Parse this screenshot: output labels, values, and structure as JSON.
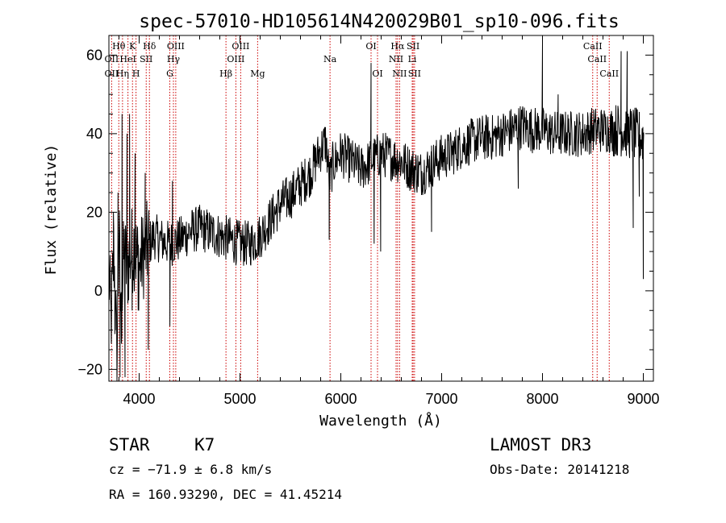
{
  "chart_data": {
    "type": "line",
    "title": "spec-57010-HD105614N420029B01_sp10-096.fits",
    "xlabel": "Wavelength (Å)",
    "ylabel": "Flux (relative)",
    "xlim": [
      3700,
      9100
    ],
    "ylim": [
      -23,
      65
    ],
    "xticks": [
      4000,
      5000,
      6000,
      7000,
      8000,
      9000
    ],
    "yticks": [
      -20,
      0,
      20,
      40,
      60
    ],
    "grid": false,
    "series": [
      {
        "name": "flux",
        "anchors": [
          [
            3700,
            5
          ],
          [
            3720,
            -8
          ],
          [
            3750,
            10
          ],
          [
            3780,
            -18
          ],
          [
            3800,
            15
          ],
          [
            3820,
            -8
          ],
          [
            3850,
            10
          ],
          [
            3880,
            5
          ],
          [
            3900,
            8
          ],
          [
            3950,
            12
          ],
          [
            4000,
            6
          ],
          [
            4050,
            10
          ],
          [
            4100,
            12
          ],
          [
            4150,
            14
          ],
          [
            4200,
            13
          ],
          [
            4300,
            12
          ],
          [
            4400,
            13
          ],
          [
            4500,
            15
          ],
          [
            4600,
            16
          ],
          [
            4700,
            15
          ],
          [
            4800,
            14
          ],
          [
            4900,
            13
          ],
          [
            5000,
            12
          ],
          [
            5100,
            12
          ],
          [
            5200,
            14
          ],
          [
            5300,
            18
          ],
          [
            5400,
            22
          ],
          [
            5500,
            24
          ],
          [
            5600,
            27
          ],
          [
            5700,
            30
          ],
          [
            5750,
            33
          ],
          [
            5800,
            36
          ],
          [
            5850,
            38
          ],
          [
            5890,
            28
          ],
          [
            5920,
            32
          ],
          [
            6000,
            35
          ],
          [
            6100,
            33
          ],
          [
            6200,
            31
          ],
          [
            6300,
            33
          ],
          [
            6400,
            35
          ],
          [
            6500,
            34
          ],
          [
            6600,
            33
          ],
          [
            6700,
            31
          ],
          [
            6800,
            30
          ],
          [
            6900,
            32
          ],
          [
            7000,
            34
          ],
          [
            7100,
            35
          ],
          [
            7200,
            37
          ],
          [
            7300,
            38
          ],
          [
            7400,
            39
          ],
          [
            7500,
            39
          ],
          [
            7600,
            40
          ],
          [
            7700,
            41
          ],
          [
            7800,
            42
          ],
          [
            7900,
            41
          ],
          [
            8000,
            41
          ],
          [
            8100,
            40
          ],
          [
            8200,
            40
          ],
          [
            8300,
            40
          ],
          [
            8400,
            40
          ],
          [
            8500,
            41
          ],
          [
            8600,
            41
          ],
          [
            8700,
            41
          ],
          [
            8800,
            41
          ],
          [
            8900,
            40
          ],
          [
            8980,
            39
          ]
        ],
        "spikes": [
          [
            3725,
            -13
          ],
          [
            3745,
            20
          ],
          [
            3760,
            -11
          ],
          [
            3790,
            25
          ],
          [
            3810,
            -22
          ],
          [
            3830,
            45
          ],
          [
            3860,
            -22
          ],
          [
            3880,
            40
          ],
          [
            3905,
            45
          ],
          [
            3930,
            -5
          ],
          [
            3960,
            35
          ],
          [
            3990,
            -5
          ],
          [
            4060,
            30
          ],
          [
            4090,
            -15
          ],
          [
            4305,
            -9
          ],
          [
            4330,
            28
          ],
          [
            5885,
            13
          ],
          [
            6300,
            58
          ],
          [
            6330,
            12
          ],
          [
            6395,
            10
          ],
          [
            8000,
            63
          ],
          [
            8155,
            50
          ],
          [
            8780,
            61
          ],
          [
            8840,
            61
          ],
          [
            8900,
            16
          ],
          [
            8960,
            24
          ],
          [
            9000,
            3
          ],
          [
            7760,
            26
          ],
          [
            6900,
            15
          ]
        ],
        "noise_amplitude": 6
      }
    ],
    "annotations": [
      {
        "label": "Hθ",
        "x": 3798,
        "row": 1
      },
      {
        "label": "K",
        "x": 3934,
        "row": 1
      },
      {
        "label": "Hδ",
        "x": 4102,
        "row": 1
      },
      {
        "label": "OIII",
        "x": 4363,
        "row": 1
      },
      {
        "label": "OIII",
        "x": 5007,
        "row": 1
      },
      {
        "label": "OI",
        "x": 6300,
        "row": 1
      },
      {
        "label": "Hα",
        "x": 6563,
        "row": 1
      },
      {
        "label": "SII",
        "x": 6717,
        "row": 1
      },
      {
        "label": "CaII",
        "x": 8498,
        "row": 1
      },
      {
        "label": "OII",
        "x": 3727,
        "row": 2
      },
      {
        "label": "HeI",
        "x": 3889,
        "row": 2
      },
      {
        "label": "SII",
        "x": 4070,
        "row": 2
      },
      {
        "label": "Hγ",
        "x": 4340,
        "row": 2
      },
      {
        "label": "OIII",
        "x": 4959,
        "row": 2
      },
      {
        "label": "Na",
        "x": 5893,
        "row": 2
      },
      {
        "label": "NII",
        "x": 6548,
        "row": 2
      },
      {
        "label": "Li",
        "x": 6708,
        "row": 2
      },
      {
        "label": "CaII",
        "x": 8542,
        "row": 2
      },
      {
        "label": "OII",
        "x": 3727,
        "row": 3
      },
      {
        "label": "Hη",
        "x": 3835,
        "row": 3
      },
      {
        "label": "H",
        "x": 3969,
        "row": 3
      },
      {
        "label": "G",
        "x": 4304,
        "row": 3
      },
      {
        "label": "Hβ",
        "x": 4861,
        "row": 3
      },
      {
        "label": "Mg",
        "x": 5175,
        "row": 3
      },
      {
        "label": "OI",
        "x": 6364,
        "row": 3
      },
      {
        "label": "NII",
        "x": 6583,
        "row": 3
      },
      {
        "label": "SII",
        "x": 6731,
        "row": 3
      },
      {
        "label": "CaII",
        "x": 8662,
        "row": 3
      }
    ],
    "line_markers": [
      3727,
      3798,
      3835,
      3889,
      3934,
      3969,
      4070,
      4102,
      4304,
      4340,
      4363,
      4861,
      4959,
      5007,
      5175,
      5893,
      6300,
      6364,
      6548,
      6563,
      6583,
      6708,
      6717,
      6731,
      8498,
      8542,
      8662
    ]
  },
  "colors": {
    "spectrum": "#000000",
    "marker": "#cc0000",
    "frame": "#000000"
  },
  "info": {
    "object_class": "STAR",
    "subclass": "K7",
    "survey": "LAMOST DR3",
    "cz": "cz = −71.9 ± 6.8 km/s",
    "obs_date": "Obs-Date: 20141218",
    "coords": "RA = 160.93290, DEC =  41.45214"
  }
}
